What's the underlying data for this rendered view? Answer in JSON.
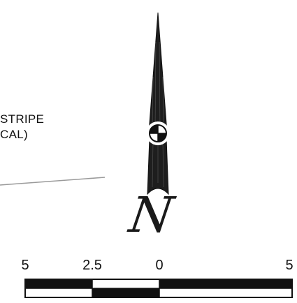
{
  "note": {
    "line1": "STRIPE",
    "line2": "CAL)"
  },
  "north_arrow": {
    "letter": "N"
  },
  "scale_bar": {
    "labels": [
      "5",
      "2.5",
      "0",
      "5"
    ]
  },
  "colors": {
    "ink": "#111111",
    "leader_line": "#9a9a9a",
    "background": "#ffffff"
  }
}
